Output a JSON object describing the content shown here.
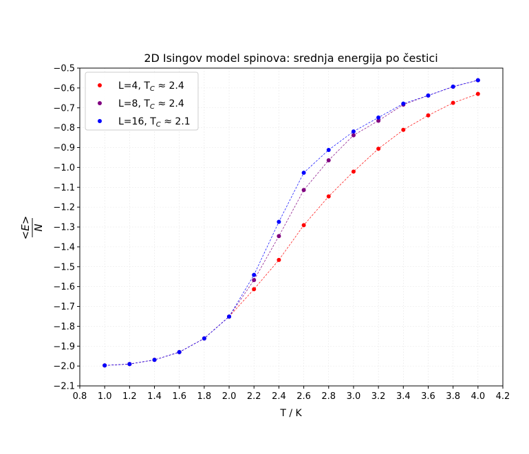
{
  "chart_data": {
    "type": "scatter",
    "title": "2D Isingov model spinova: srednja energija po čestici",
    "xlabel": "T / K",
    "ylabel": "<E>/N",
    "xlim": [
      0.8,
      4.2
    ],
    "ylim": [
      -2.1,
      -0.5
    ],
    "xticks": [
      "0.8",
      "1.0",
      "1.2",
      "1.4",
      "1.6",
      "1.8",
      "2.0",
      "2.2",
      "2.4",
      "2.6",
      "2.8",
      "3.0",
      "3.2",
      "3.4",
      "3.6",
      "3.8",
      "4.0",
      "4.2"
    ],
    "yticks": [
      "−0.5",
      "−0.6",
      "−0.7",
      "−0.8",
      "−0.9",
      "−1.0",
      "−1.1",
      "−1.2",
      "−1.3",
      "−1.4",
      "−1.5",
      "−1.6",
      "−1.7",
      "−1.8",
      "−1.9",
      "−2.0",
      "−2.1"
    ],
    "grid": true,
    "legend_position": "top-left",
    "x": [
      1.0,
      1.2,
      1.4,
      1.6,
      1.8,
      2.0,
      2.2,
      2.4,
      2.6,
      2.8,
      3.0,
      3.2,
      3.4,
      3.6,
      3.8,
      4.0
    ],
    "series": [
      {
        "name": "L=4, T_C ≈ 2.4",
        "legend_main": "L=4, T",
        "legend_sub": "C",
        "legend_tail": " ≈ 2.4",
        "color": "#ff0000",
        "values": [
          -1.997,
          -1.99,
          -1.969,
          -1.93,
          -1.861,
          -1.751,
          -1.613,
          -1.466,
          -1.291,
          -1.146,
          -1.021,
          -0.906,
          -0.811,
          -0.738,
          -0.675,
          -0.63
        ]
      },
      {
        "name": "L=8, T_C ≈ 2.4",
        "legend_main": "L=8, T",
        "legend_sub": "C",
        "legend_tail": " ≈ 2.4",
        "color": "#800080",
        "values": [
          -1.997,
          -1.99,
          -1.969,
          -1.93,
          -1.861,
          -1.751,
          -1.567,
          -1.346,
          -1.114,
          -0.964,
          -0.838,
          -0.765,
          -0.684,
          -0.638,
          -0.594,
          -0.561
        ]
      },
      {
        "name": "L=16, T_C ≈ 2.1",
        "legend_main": "L=16, T",
        "legend_sub": "C",
        "legend_tail": " ≈ 2.1",
        "color": "#0000ff",
        "values": [
          -1.997,
          -1.99,
          -1.969,
          -1.93,
          -1.861,
          -1.751,
          -1.541,
          -1.274,
          -1.027,
          -0.912,
          -0.819,
          -0.749,
          -0.679,
          -0.638,
          -0.593,
          -0.561
        ]
      }
    ]
  }
}
